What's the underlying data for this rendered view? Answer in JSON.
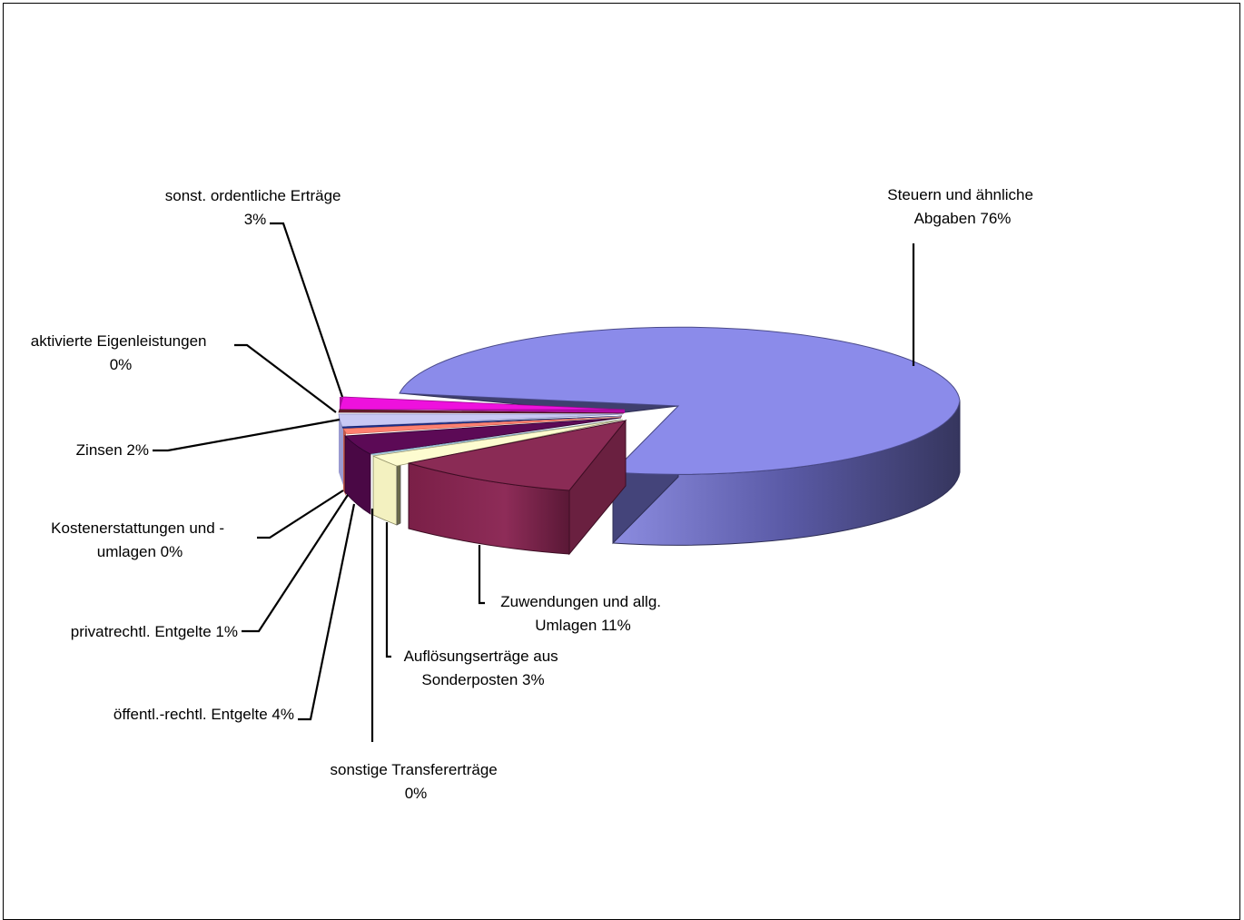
{
  "chart_data": {
    "type": "pie",
    "style": "3d-exploded",
    "title": "",
    "slices": [
      {
        "lines": [
          "Steuern und ähnliche",
          "Abgaben 76%"
        ],
        "value": 76,
        "color": "#8b8bea",
        "side": "#3d3d6e"
      },
      {
        "lines": [
          "Zuwendungen und allg.",
          "Umlagen 11%"
        ],
        "value": 11,
        "color": "#8a2b55",
        "side": "#6a2040"
      },
      {
        "lines": [
          "Auflösungserträge aus",
          "Sonderposten 3%"
        ],
        "value": 3,
        "color": "#fdfcd0",
        "side": "#e9e6b0"
      },
      {
        "lines": [
          "sonstige Transfererträge",
          "0%"
        ],
        "value": 0,
        "color": "#b5d9ee",
        "side": "#7fa9c2"
      },
      {
        "lines": [
          "öffentl.-rechtl. Entgelte 4%"
        ],
        "value": 4,
        "color": "#5c0a56",
        "side": "#4a0845"
      },
      {
        "lines": [
          "privatrechtl. Entgelte 1%"
        ],
        "value": 1,
        "color": "#ff8070",
        "side": "#c05a4c"
      },
      {
        "lines": [
          "Kostenerstattungen und -",
          "umlagen 0%"
        ],
        "value": 0,
        "color": "#1b2f8f",
        "side": "#12206a"
      },
      {
        "lines": [
          "Zinsen 2%"
        ],
        "value": 2,
        "color": "#c8c8f4",
        "side": "#9a9ad0"
      },
      {
        "lines": [
          "aktivierte Eigenleistungen",
          "0%"
        ],
        "value": 0,
        "color": "#6b1c2f",
        "side": "#4c1422"
      },
      {
        "lines": [
          "sonst. ordentliche Erträge",
          "3%"
        ],
        "value": 3,
        "color": "#ee11dd",
        "side": "#b10ca4"
      }
    ]
  }
}
